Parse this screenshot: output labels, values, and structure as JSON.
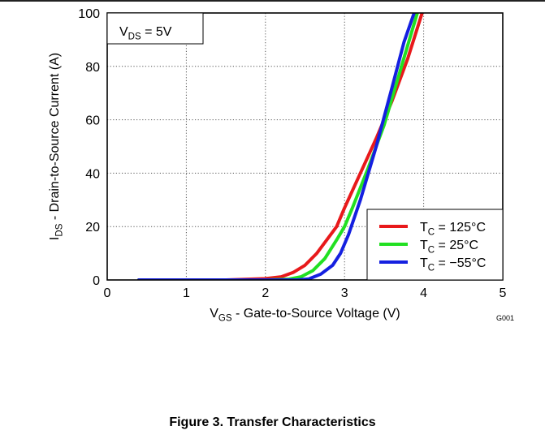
{
  "figure_caption": "Figure 3. Transfer Characteristics",
  "chart_data": {
    "type": "line",
    "annotation": {
      "text": "V",
      "sub": "DS",
      "rest": " = 5V"
    },
    "figure_code": "G001",
    "xlabel": {
      "text": "V",
      "sub": "GS",
      "rest": " - Gate-to-Source Voltage (V)"
    },
    "ylabel": {
      "text": "I",
      "sub": "DS",
      "rest": " - Drain-to-Source Current  (A)"
    },
    "xlim": [
      0,
      5
    ],
    "ylim": [
      0,
      100
    ],
    "xticks": [
      0,
      1,
      2,
      3,
      4,
      5
    ],
    "yticks": [
      0,
      20,
      40,
      60,
      80,
      100
    ],
    "grid": true,
    "legend_position": "bottom-right",
    "series": [
      {
        "name": "T_C = 125°C",
        "label": {
          "text": "T",
          "sub": "C",
          "rest": " = 125°C"
        },
        "color": "#e8191b",
        "x": [
          0.4,
          1.0,
          1.5,
          2.0,
          2.2,
          2.35,
          2.5,
          2.65,
          2.8,
          2.9,
          3.0,
          3.2,
          3.4,
          3.6,
          3.8,
          3.98
        ],
        "y": [
          0,
          0,
          0,
          0.5,
          1.2,
          2.8,
          5.5,
          10,
          16,
          20,
          27,
          40,
          53,
          67,
          83,
          100
        ]
      },
      {
        "name": "T_C = 25°C",
        "label": {
          "text": "T",
          "sub": "C",
          "rest": " = 25°C"
        },
        "color": "#22e022",
        "x": [
          0.4,
          1.0,
          1.5,
          2.0,
          2.3,
          2.45,
          2.6,
          2.75,
          2.9,
          3.0,
          3.1,
          3.3,
          3.5,
          3.65,
          3.8,
          3.92
        ],
        "y": [
          0,
          0,
          0,
          0,
          0.3,
          1.2,
          3.5,
          8,
          15,
          20,
          27,
          42,
          58,
          73,
          88,
          100
        ]
      },
      {
        "name": "T_C = −55°C",
        "label": {
          "text": "T",
          "sub": "C",
          "rest": " = −55°C"
        },
        "color": "#1520e0",
        "x": [
          0.4,
          1.0,
          1.5,
          2.0,
          2.4,
          2.55,
          2.7,
          2.85,
          2.95,
          3.05,
          3.2,
          3.4,
          3.6,
          3.75,
          3.88
        ],
        "y": [
          0,
          0,
          0,
          0,
          0,
          0.4,
          2.2,
          5.5,
          10,
          17,
          30,
          50,
          72,
          89,
          100
        ]
      }
    ]
  }
}
